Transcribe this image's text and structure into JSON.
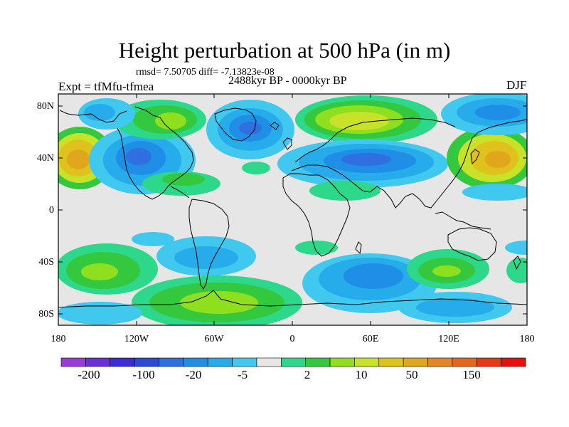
{
  "title": "Height perturbation at 500 hPa (in m)",
  "stats": "rmsd= 7.50705  diff= -7.13823e-08",
  "experiment": "Expt = tfMfu-tfmea",
  "period": "2488kyr BP - 0000kyr BP",
  "season": "DJF",
  "axes": {
    "y_ticks": [
      "80N",
      "40N",
      "0",
      "40S",
      "80S"
    ],
    "x_ticks": [
      "180",
      "120W",
      "60W",
      "0",
      "60E",
      "120E",
      "180"
    ]
  },
  "colorbar": {
    "labels": [
      "-200",
      "-100",
      "-20",
      "-5",
      "2",
      "10",
      "50",
      "150"
    ],
    "colors": [
      "#9a3bd9",
      "#6a2fd6",
      "#3d2bd3",
      "#2a4bd6",
      "#2f6fe0",
      "#1f8ee6",
      "#26acea",
      "#40c8ee",
      "#e6e6e6",
      "#2ed88a",
      "#33c83e",
      "#8ee01e",
      "#c8e22a",
      "#e0c21c",
      "#e0a61c",
      "#e38623",
      "#e5661c",
      "#e63a16",
      "#e0140e"
    ]
  },
  "map_colors": {
    "background": "#e6e6e6",
    "coast": "#000000"
  }
}
